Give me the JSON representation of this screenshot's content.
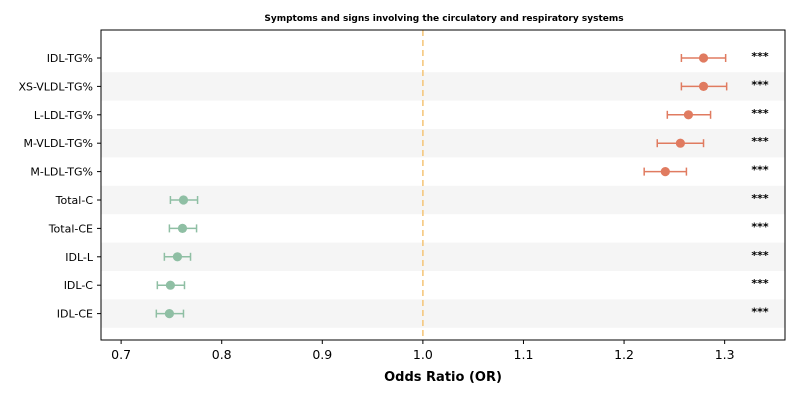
{
  "chart_data": {
    "type": "scatter",
    "subtype": "forest-plot",
    "title": "Symptoms and signs involving the circulatory and respiratory systems",
    "xlabel": "Odds Ratio (OR)",
    "ylabel": "",
    "xlim": [
      0.68,
      1.36
    ],
    "xticks": [
      "0.7",
      "0.8",
      "0.9",
      "1.0",
      "1.1",
      "1.2",
      "1.3"
    ],
    "reference_line": 1.0,
    "grid": false,
    "row_striping": true,
    "colors": {
      "positive": "#e07b60",
      "negative": "#8fbfa4",
      "reference": "#f5c77e",
      "stripe": "#f5f5f5"
    },
    "points": [
      {
        "label": "IDL-TG%",
        "or": 1.279,
        "ci_low": 1.257,
        "ci_high": 1.301,
        "sig": "***"
      },
      {
        "label": "XS-VLDL-TG%",
        "or": 1.279,
        "ci_low": 1.257,
        "ci_high": 1.302,
        "sig": "***"
      },
      {
        "label": "L-LDL-TG%",
        "or": 1.264,
        "ci_low": 1.243,
        "ci_high": 1.286,
        "sig": "***"
      },
      {
        "label": "M-VLDL-TG%",
        "or": 1.256,
        "ci_low": 1.233,
        "ci_high": 1.279,
        "sig": "***"
      },
      {
        "label": "M-LDL-TG%",
        "or": 1.241,
        "ci_low": 1.22,
        "ci_high": 1.262,
        "sig": "***"
      },
      {
        "label": "Total-C",
        "or": 0.762,
        "ci_low": 0.749,
        "ci_high": 0.776,
        "sig": "***"
      },
      {
        "label": "Total-CE",
        "or": 0.761,
        "ci_low": 0.748,
        "ci_high": 0.775,
        "sig": "***"
      },
      {
        "label": "IDL-L",
        "or": 0.756,
        "ci_low": 0.743,
        "ci_high": 0.769,
        "sig": "***"
      },
      {
        "label": "IDL-C",
        "or": 0.749,
        "ci_low": 0.736,
        "ci_high": 0.763,
        "sig": "***"
      },
      {
        "label": "IDL-CE",
        "or": 0.748,
        "ci_low": 0.735,
        "ci_high": 0.762,
        "sig": "***"
      }
    ]
  }
}
